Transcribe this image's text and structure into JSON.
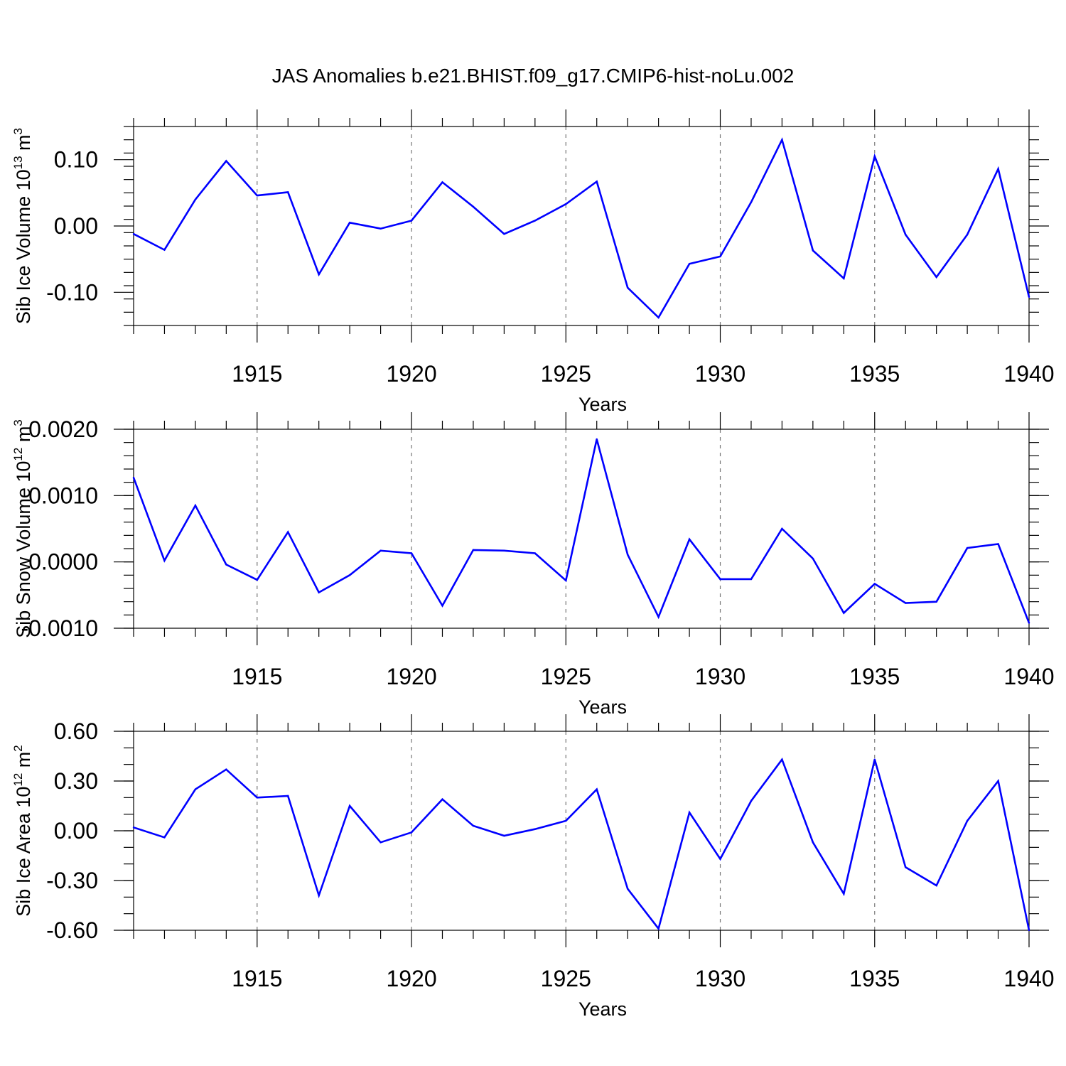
{
  "title": "JAS Anomalies b.e21.BHIST.f09_g17.CMIP6-hist-noLu.002",
  "line_color": "#0000ff",
  "chart_data": [
    {
      "type": "line",
      "name": "sib-ice-volume",
      "ylabel_base": "Sib Ice Volume 10",
      "ylabel_exp": "13",
      "ylabel_unit": " m",
      "ylabel_unit_exp": "3",
      "xlabel": "Years",
      "xlim": [
        1911,
        1940
      ],
      "ylim": [
        -0.15,
        0.15
      ],
      "yticks": [
        -0.1,
        0.0,
        0.1
      ],
      "ytick_labels": [
        "-0.10",
        "0.00",
        "0.10"
      ],
      "yminor_step": 0.02,
      "xticks": [
        1915,
        1920,
        1925,
        1930,
        1935,
        1940
      ],
      "xtick_labels": [
        "1915",
        "1920",
        "1925",
        "1930",
        "1935",
        "1940"
      ],
      "x": [
        1911,
        1912,
        1913,
        1914,
        1915,
        1916,
        1917,
        1918,
        1919,
        1920,
        1921,
        1922,
        1923,
        1924,
        1925,
        1926,
        1927,
        1928,
        1929,
        1930,
        1931,
        1932,
        1933,
        1934,
        1935,
        1936,
        1937,
        1938,
        1939,
        1940
      ],
      "values": [
        -0.012,
        -0.036,
        0.04,
        0.098,
        0.046,
        0.051,
        -0.073,
        0.005,
        -0.004,
        0.008,
        0.066,
        0.029,
        -0.012,
        0.008,
        0.033,
        0.067,
        -0.093,
        -0.138,
        -0.057,
        -0.046,
        0.036,
        0.13,
        -0.037,
        -0.079,
        0.105,
        -0.013,
        -0.077,
        -0.013,
        0.086,
        -0.107
      ]
    },
    {
      "type": "line",
      "name": "sib-snow-volume",
      "ylabel_base": "Sib Snow Volume 10",
      "ylabel_exp": "12",
      "ylabel_unit": " m",
      "ylabel_unit_exp": "3",
      "xlabel": "Years",
      "xlim": [
        1911,
        1940
      ],
      "ylim": [
        -0.001,
        0.002
      ],
      "yticks": [
        -0.001,
        0.0,
        0.001,
        0.002
      ],
      "ytick_labels": [
        "-0.0010",
        "0.0000",
        "0.0010",
        "0.0020"
      ],
      "yminor_step": 0.0002,
      "xticks": [
        1915,
        1920,
        1925,
        1930,
        1935,
        1940
      ],
      "xtick_labels": [
        "1915",
        "1920",
        "1925",
        "1930",
        "1935",
        "1940"
      ],
      "x": [
        1911,
        1912,
        1913,
        1914,
        1915,
        1916,
        1917,
        1918,
        1919,
        1920,
        1921,
        1922,
        1923,
        1924,
        1925,
        1926,
        1927,
        1928,
        1929,
        1930,
        1931,
        1932,
        1933,
        1934,
        1935,
        1936,
        1937,
        1938,
        1939,
        1940
      ],
      "values": [
        0.00127,
        2e-05,
        0.00085,
        -4e-05,
        -0.00027,
        0.00045,
        -0.00046,
        -0.0002,
        0.00017,
        0.00013,
        -0.00066,
        0.00018,
        0.00017,
        0.00013,
        -0.00028,
        0.00185,
        0.00011,
        -0.00083,
        0.00034,
        -0.00026,
        -0.00026,
        0.0005,
        5e-05,
        -0.00077,
        -0.00033,
        -0.00062,
        -0.0006,
        0.00021,
        0.00027,
        -0.00092
      ]
    },
    {
      "type": "line",
      "name": "sib-ice-area",
      "ylabel_base": "Sib Ice Area 10",
      "ylabel_exp": "12",
      "ylabel_unit": " m",
      "ylabel_unit_exp": "2",
      "xlabel": "Years",
      "xlim": [
        1911,
        1940
      ],
      "ylim": [
        -0.6,
        0.6
      ],
      "yticks": [
        -0.6,
        -0.3,
        0.0,
        0.3,
        0.6
      ],
      "ytick_labels": [
        "-0.60",
        "-0.30",
        "0.00",
        "0.30",
        "0.60"
      ],
      "yminor_step": 0.1,
      "xticks": [
        1915,
        1920,
        1925,
        1930,
        1935,
        1940
      ],
      "xtick_labels": [
        "1915",
        "1920",
        "1925",
        "1930",
        "1935",
        "1940"
      ],
      "x": [
        1911,
        1912,
        1913,
        1914,
        1915,
        1916,
        1917,
        1918,
        1919,
        1920,
        1921,
        1922,
        1923,
        1924,
        1925,
        1926,
        1927,
        1928,
        1929,
        1930,
        1931,
        1932,
        1933,
        1934,
        1935,
        1936,
        1937,
        1938,
        1939,
        1940
      ],
      "values": [
        0.02,
        -0.04,
        0.25,
        0.37,
        0.2,
        0.21,
        -0.39,
        0.15,
        -0.07,
        -0.01,
        0.19,
        0.03,
        -0.03,
        0.01,
        0.06,
        0.25,
        -0.35,
        -0.59,
        0.11,
        -0.17,
        0.18,
        0.43,
        -0.07,
        -0.38,
        0.43,
        -0.22,
        -0.33,
        0.06,
        0.3,
        -0.6
      ]
    }
  ]
}
